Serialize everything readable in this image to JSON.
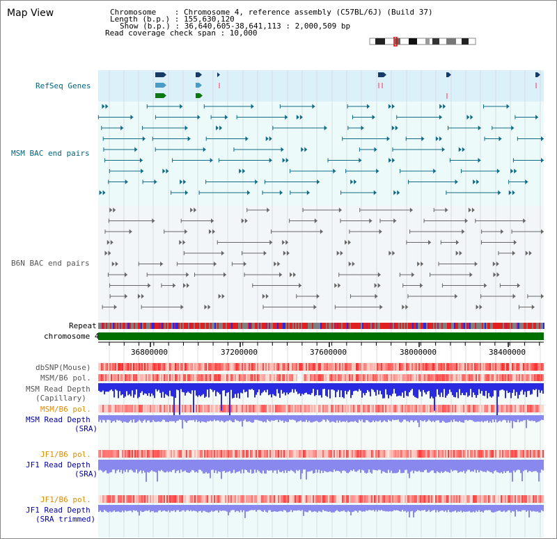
{
  "title": "Map View",
  "info": {
    "chromosome": "Chromosome    : Chromosome 4, reference assembly (C57BL/6J) (Build 37)",
    "length": "Length (b.p.) : 155,630,120",
    "show": "Show (b.p.) : 36,640,605-38,641,113 : 2,000,509 bp",
    "coverage": "Read coverage check span : 10,000"
  },
  "tracks": {
    "refseq": "RefSeq Genes",
    "msm_bac": "MSM BAC end pairs",
    "b6n_bac": "B6N BAC end pairs",
    "repeat": "Repeat",
    "chromosome": "chromosome 4",
    "dbsnp": "dbSNP(Mouse)",
    "msm_b6_pol_1": "MSM/B6 pol.",
    "msm_depth_cap_1": "MSM Read Depth",
    "msm_depth_cap_2": "(Capillary)",
    "msm_b6_pol_2": "MSM/B6 pol.",
    "msm_depth_sra_1": "MSM Read Depth",
    "msm_depth_sra_2": "(SRA)",
    "jf1_b6_pol_1": "JF1/B6 pol.",
    "jf1_depth_sra_1": "JF1 Read Depth",
    "jf1_depth_sra_2": "(SRA)",
    "jf1_b6_pol_2": "JF1/B6 pol.",
    "jf1_depth_trim_1": "JF1 Read Depth",
    "jf1_depth_trim_2": "(SRA trimmed)"
  },
  "axis": {
    "ticks": [
      "36800000",
      "37200000",
      "37600000",
      "38000000",
      "38400000"
    ]
  },
  "colors": {
    "refseq_bg": "#dcf0fa",
    "msm_bg": "#ecfafa",
    "b6n_bg": "#f0f4f8",
    "msm_feature": "#0e6b86",
    "b6n_feature": "#666666",
    "chromosome_band": "#007000",
    "depth_blue": "#2a2ae0",
    "depth_light_blue": "#8888ee",
    "label_teal": "#006680",
    "label_blue": "#0000aa",
    "label_orange": "#e08c00"
  }
}
